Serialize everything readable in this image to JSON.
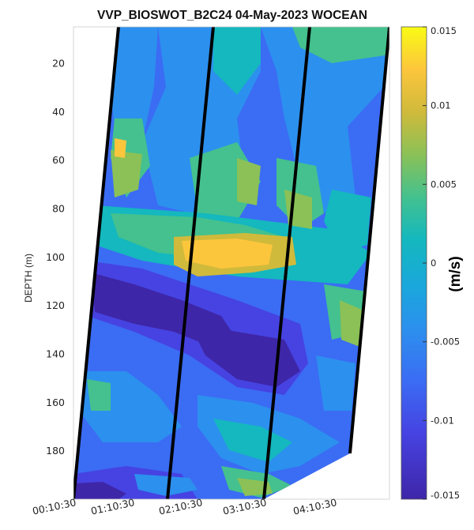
{
  "chart_data": {
    "type": "heatmap",
    "title": "VVP_BIOSWOT_B2C24 04-May-2023  WOCEAN",
    "ylabel": "DEPTH (m)",
    "y_ticks": [
      20,
      40,
      60,
      80,
      100,
      120,
      140,
      160,
      180
    ],
    "ylim": [
      5,
      200
    ],
    "y_direction": "reversed",
    "x_tick_labels": [
      "00:10:30",
      "01:10:30",
      "02:10:30",
      "03:10:30",
      "04:10:30"
    ],
    "colorbar": {
      "label": "(m/s)",
      "clim": [
        -0.015,
        0.015
      ],
      "ticks": [
        -0.015,
        -0.01,
        -0.005,
        0,
        0.005,
        0.01,
        0.015
      ],
      "tick_labels": [
        "-0.015",
        "-0.01",
        "-0.005",
        "0",
        "0.005",
        "0.01",
        "0.015"
      ],
      "colormap": "parula"
    },
    "profile_lines": [
      {
        "depth_top": 5,
        "depth_bottom": 200
      },
      {
        "depth_top": 5,
        "depth_bottom": 200
      },
      {
        "depth_top": 5,
        "depth_bottom": 200
      },
      {
        "depth_top": 5,
        "depth_bottom": 200
      },
      {
        "depth_top": 5,
        "depth_bottom": 180
      }
    ],
    "grid": false
  },
  "colors": {
    "min_color": "#3e26a8",
    "max_color": "#f9fb15",
    "profile_line": "#000000",
    "no_data": "#ffffff"
  }
}
